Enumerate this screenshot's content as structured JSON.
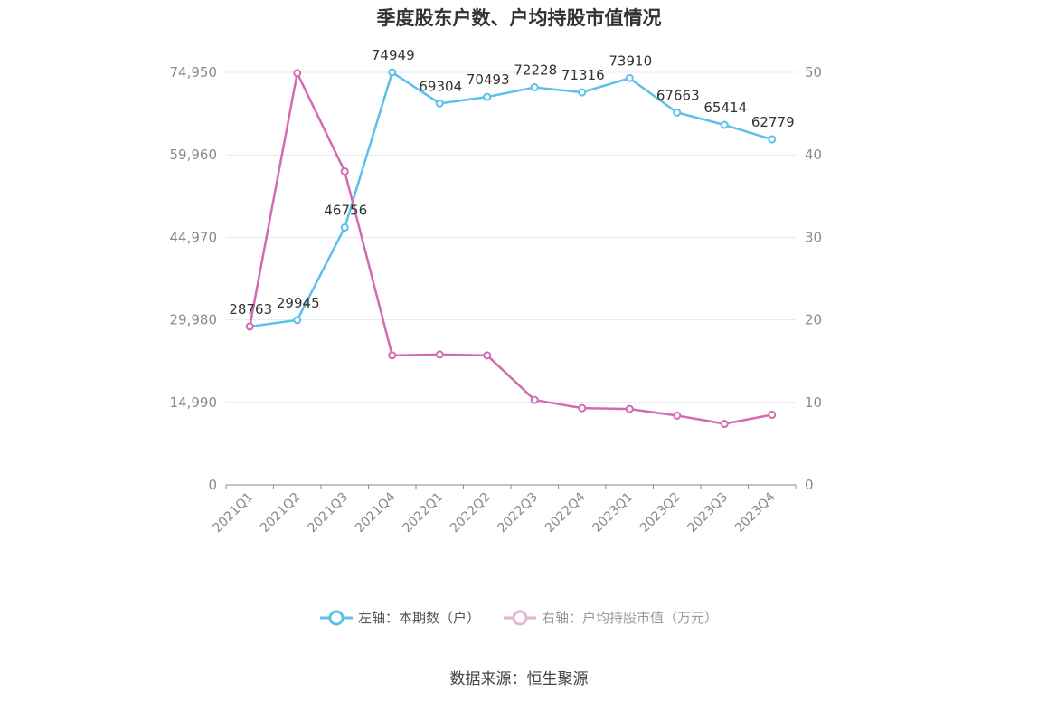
{
  "chart_data": {
    "type": "line",
    "title": "季度股东户数、户均持股市值情况",
    "categories": [
      "2021Q1",
      "2021Q2",
      "2021Q3",
      "2021Q4",
      "2022Q1",
      "2022Q2",
      "2022Q3",
      "2022Q4",
      "2023Q1",
      "2023Q2",
      "2023Q3",
      "2023Q4"
    ],
    "y_left": {
      "ticks": [
        "0",
        "14,990",
        "29,980",
        "44,970",
        "59,960",
        "74,950"
      ],
      "range": [
        0,
        74950
      ]
    },
    "y_right": {
      "ticks": [
        "0",
        "10",
        "20",
        "30",
        "40",
        "50"
      ],
      "range": [
        0,
        50
      ]
    },
    "series": [
      {
        "name": "左轴：本期数（户）",
        "axis": "left",
        "color": "#5bc0eb",
        "values": [
          28763,
          29945,
          46756,
          74949,
          69304,
          70493,
          72228,
          71316,
          73910,
          67663,
          65414,
          62779
        ],
        "labels": [
          "28763",
          "29945",
          "46756",
          "74949",
          "69304",
          "70493",
          "72228",
          "71316",
          "73910",
          "67663",
          "65414",
          "62779"
        ]
      },
      {
        "name": "右轴：户均持股市值（万元）",
        "axis": "right",
        "color": "#d36bb2",
        "values": [
          19.2,
          49.9,
          38.0,
          15.7,
          15.8,
          15.7,
          10.3,
          9.3,
          9.2,
          8.4,
          7.4,
          8.5
        ]
      }
    ],
    "grid": true,
    "legend_position": "bottom"
  },
  "source": "数据来源：恒生聚源"
}
